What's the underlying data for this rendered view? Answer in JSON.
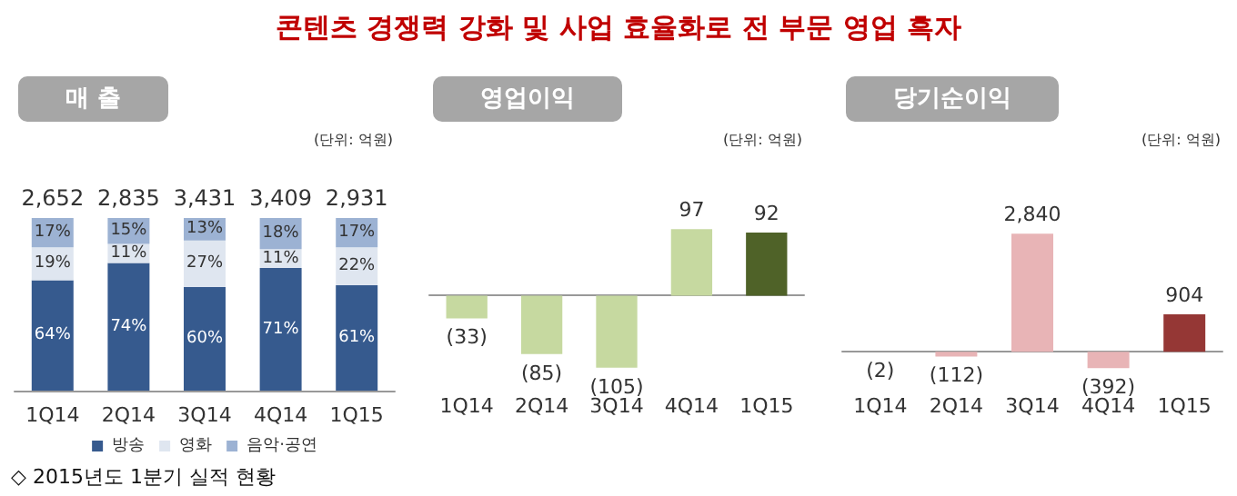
{
  "chart_data": [
    {
      "type": "bar",
      "title": "매 출",
      "subtitle": "(단위: 억원)",
      "annotations": [
        "콘텐츠 경쟁력 강화 및 사업 효율화로 전 부문 영업 흑자",
        "◇ 2015년도 1분기 실적 현황",
        {
          "text": "2,652",
          "x": "1Q14",
          "y": 100
        },
        {
          "text": "2,835",
          "x": "2Q14",
          "y": 100
        },
        {
          "text": "3,431",
          "x": "3Q14",
          "y": 100
        },
        {
          "text": "3,409",
          "x": "4Q14",
          "y": 100
        },
        {
          "text": "2,931",
          "x": "1Q15",
          "y": 100
        }
      ],
      "categories": [
        "1Q14",
        "2Q14",
        "3Q14",
        "4Q14",
        "1Q15"
      ],
      "stacked": true,
      "legend": "bottom",
      "series": [
        {
          "name": "방송",
          "color": "#365a8e",
          "values": [
            64,
            74,
            60,
            71,
            61
          ],
          "value_labels": [
            "64%",
            "74%",
            "60%",
            "71%",
            "61%"
          ]
        },
        {
          "name": "영화",
          "color": "#dfe6f0",
          "values": [
            19,
            11,
            27,
            11,
            22
          ],
          "value_labels": [
            "19%",
            "11%",
            "27%",
            "11%",
            "22%"
          ]
        },
        {
          "name": "음악·공연",
          "color": "#9cb2d3",
          "values": [
            17,
            15,
            13,
            18,
            17
          ],
          "value_labels": [
            "17%",
            "15%",
            "13%",
            "18%",
            "17%"
          ]
        }
      ]
    },
    {
      "type": "bar",
      "title": "영업이익",
      "subtitle": "(단위: 억원)",
      "categories": [
        "1Q14",
        "2Q14",
        "3Q14",
        "4Q14",
        "1Q15"
      ],
      "values": [
        -33,
        -85,
        -105,
        97,
        92
      ],
      "value_labels": [
        "(33)",
        "(85)",
        "(105)",
        "97",
        "92"
      ],
      "colors": [
        "#c6d9a0",
        "#c6d9a0",
        "#c6d9a0",
        "#c6d9a0",
        "#4f6228"
      ]
    },
    {
      "type": "bar",
      "title": "당기순이익",
      "subtitle": "(단위: 억원)",
      "categories": [
        "1Q14",
        "2Q14",
        "3Q14",
        "4Q14",
        "1Q15"
      ],
      "values": [
        -2,
        -112,
        2840,
        -392,
        904
      ],
      "value_labels": [
        "(2)",
        "(112)",
        "2,840",
        "(392)",
        "904"
      ],
      "colors": [
        "#e8b4b6",
        "#e8b4b6",
        "#e8b4b6",
        "#e8b4b6",
        "#953735"
      ]
    }
  ]
}
